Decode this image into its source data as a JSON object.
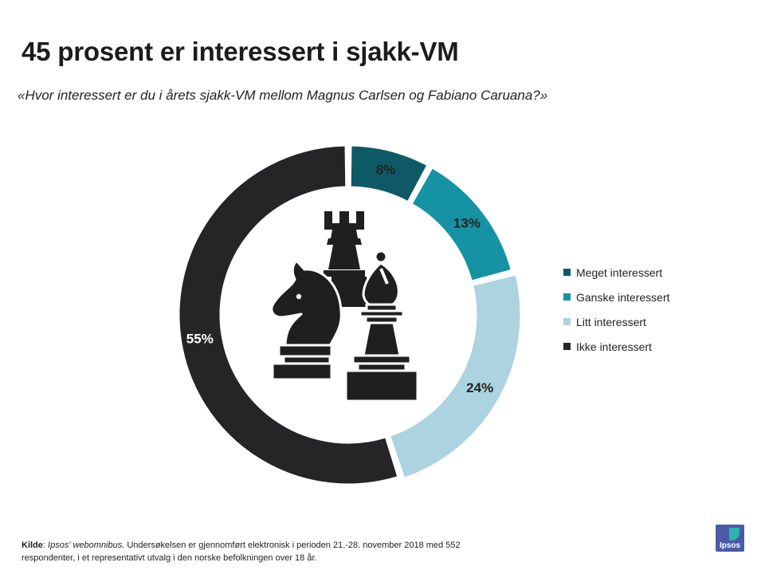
{
  "title": "45 prosent er interessert i sjakk-VM",
  "subtitle": "«Hvor interessert er du i årets sjakk-VM mellom Magnus Carlsen og Fabiano Caruana?»",
  "chart_data": {
    "type": "pie",
    "variant": "donut",
    "series": [
      {
        "name": "Meget interessert",
        "value": 8,
        "label": "8%",
        "color": "#0d5a66"
      },
      {
        "name": "Ganske interessert",
        "value": 13,
        "label": "13%",
        "color": "#1593a4"
      },
      {
        "name": "Litt interessert",
        "value": 24,
        "label": "24%",
        "color": "#acd3e0"
      },
      {
        "name": "Ikke interessert",
        "value": 55,
        "label": "55%",
        "color": "#252427"
      }
    ],
    "legend_position": "right",
    "center_icon": "chess-pieces-icon"
  },
  "footer": {
    "source_label": "Kilde",
    "source_name": "Ipsos' webomnibus.",
    "line1_rest": " Undersøkelsen er gjennomført elektronisk i perioden 21.-28. november 2018 med 552",
    "line2": "respondenter, i et representativt utvalg i den norske befolkningen over 18 år."
  },
  "logo": {
    "text": "Ipsos",
    "primary_color": "#4a5aa8",
    "accent_color": "#2fb3b1"
  }
}
